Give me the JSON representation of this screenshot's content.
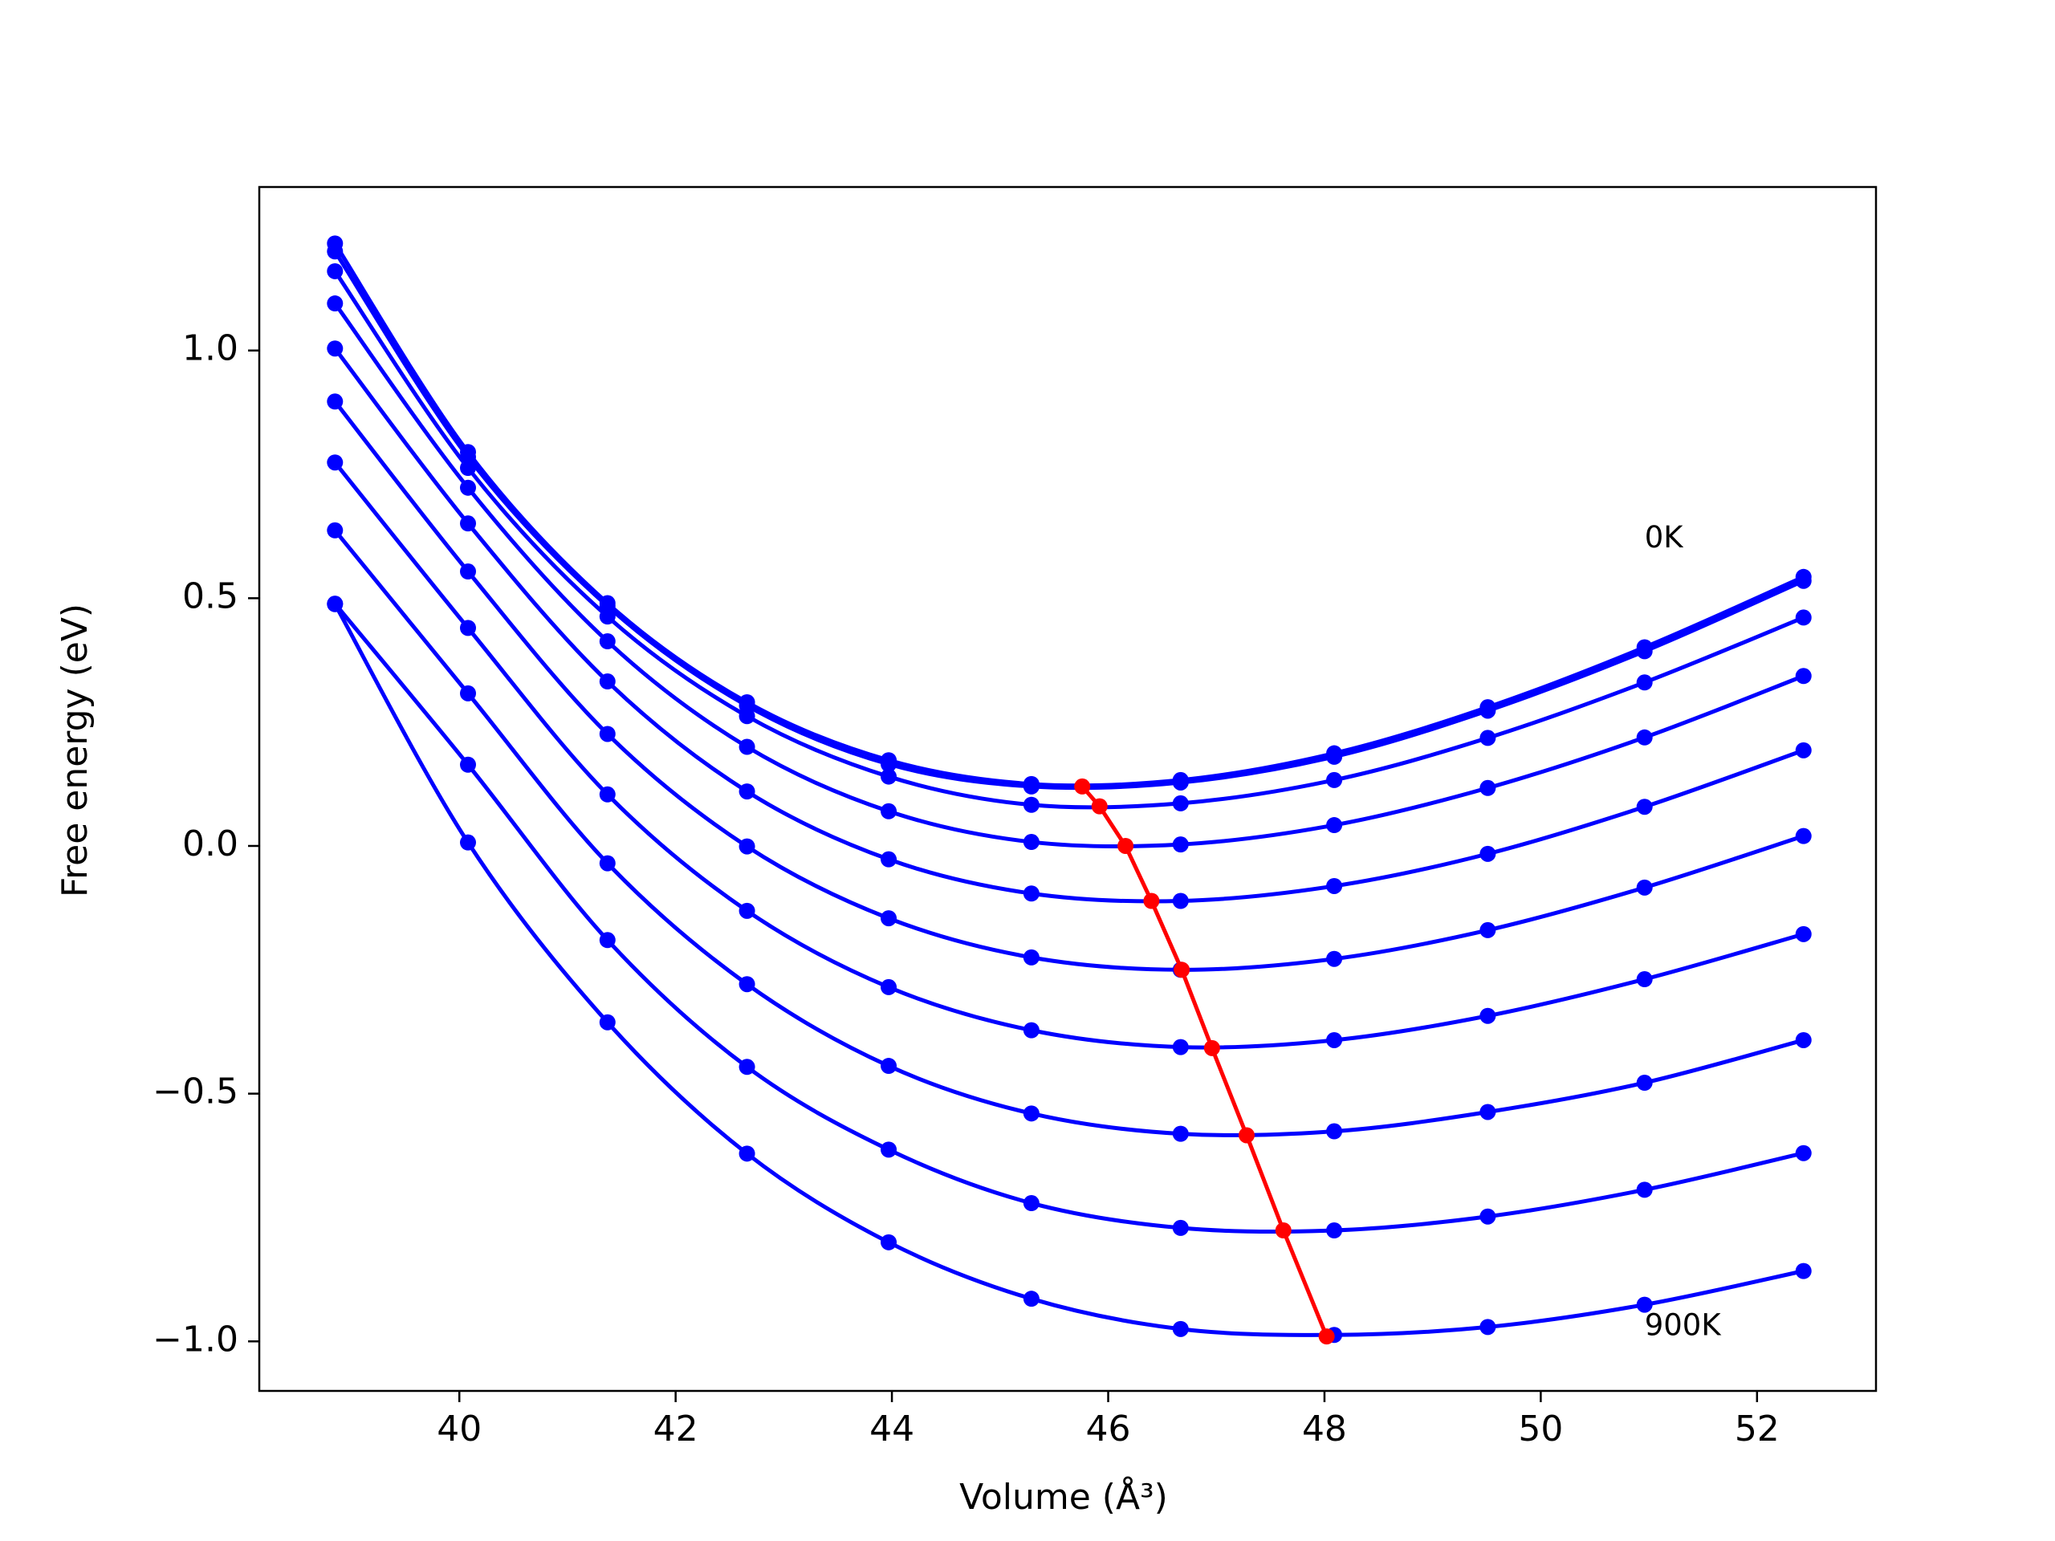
{
  "chart_data": {
    "type": "line",
    "title": "",
    "xlabel": "Volume (Å³)",
    "ylabel": "Free energy (eV)",
    "xlim": [
      38.15,
      53.1
    ],
    "ylim": [
      -1.1,
      1.33
    ],
    "xticks": [
      40,
      42,
      44,
      46,
      48,
      50,
      52
    ],
    "yticks": [
      1.0,
      0.5,
      0.0,
      -0.5,
      -1.0
    ],
    "xtick_labels": [
      "40",
      "42",
      "44",
      "46",
      "48",
      "50",
      "52"
    ],
    "ytick_labels": [
      "1.0",
      "0.5",
      "0.0",
      "−0.5",
      "−1.0"
    ],
    "grid": false,
    "x": [
      38.85,
      40.08,
      41.37,
      42.66,
      43.97,
      45.29,
      46.67,
      48.09,
      49.51,
      50.96,
      52.43
    ],
    "series": [
      {
        "values": [
          1.216,
          0.795,
          0.49,
          0.29,
          0.173,
          0.125,
          0.133,
          0.187,
          0.28,
          0.401,
          0.543
        ],
        "color": "#0000ff"
      },
      {
        "values": [
          1.2,
          0.785,
          0.484,
          0.283,
          0.165,
          0.12,
          0.128,
          0.18,
          0.273,
          0.393,
          0.535
        ],
        "color": "#0000ff"
      },
      {
        "values": [
          1.16,
          0.763,
          0.463,
          0.262,
          0.14,
          0.083,
          0.086,
          0.133,
          0.218,
          0.33,
          0.461
        ],
        "color": "#0000ff"
      },
      {
        "values": [
          1.095,
          0.723,
          0.413,
          0.2,
          0.07,
          0.008,
          0.003,
          0.042,
          0.117,
          0.219,
          0.343
        ],
        "color": "#0000ff"
      },
      {
        "values": [
          1.004,
          0.651,
          0.332,
          0.11,
          -0.027,
          -0.096,
          -0.111,
          -0.081,
          -0.016,
          0.079,
          0.193
        ],
        "color": "#0000ff"
      },
      {
        "values": [
          0.897,
          0.554,
          0.226,
          -0.001,
          -0.146,
          -0.225,
          -0.25,
          -0.228,
          -0.17,
          -0.084,
          0.02
        ],
        "color": "#0000ff"
      },
      {
        "values": [
          0.774,
          0.44,
          0.104,
          -0.131,
          -0.285,
          -0.372,
          -0.406,
          -0.392,
          -0.343,
          -0.269,
          -0.178
        ],
        "color": "#0000ff"
      },
      {
        "values": [
          0.637,
          0.308,
          -0.035,
          -0.279,
          -0.444,
          -0.54,
          -0.581,
          -0.576,
          -0.537,
          -0.478,
          -0.392
        ],
        "color": "#0000ff"
      },
      {
        "values": [
          0.489,
          0.164,
          -0.19,
          -0.446,
          -0.613,
          -0.721,
          -0.771,
          -0.776,
          -0.748,
          -0.694,
          -0.62
        ],
        "color": "#0000ff"
      },
      {
        "values": [
          0.488,
          0.007,
          -0.356,
          -0.621,
          -0.8,
          -0.914,
          -0.975,
          -0.987,
          -0.971,
          -0.926,
          -0.858
        ],
        "color": "#0000ff"
      }
    ],
    "minima_series": {
      "color": "#ff0000",
      "x": [
        45.76,
        45.92,
        46.16,
        46.4,
        46.68,
        46.96,
        47.28,
        47.62,
        48.02
      ],
      "y": [
        0.12,
        0.08,
        0.0,
        -0.111,
        -0.25,
        -0.408,
        -0.584,
        -0.776,
        -0.99
      ]
    },
    "annotations": [
      {
        "text": "0K",
        "x": 50.96,
        "y": 0.62
      },
      {
        "text": "900K",
        "x": 50.96,
        "y": -0.97
      }
    ]
  }
}
